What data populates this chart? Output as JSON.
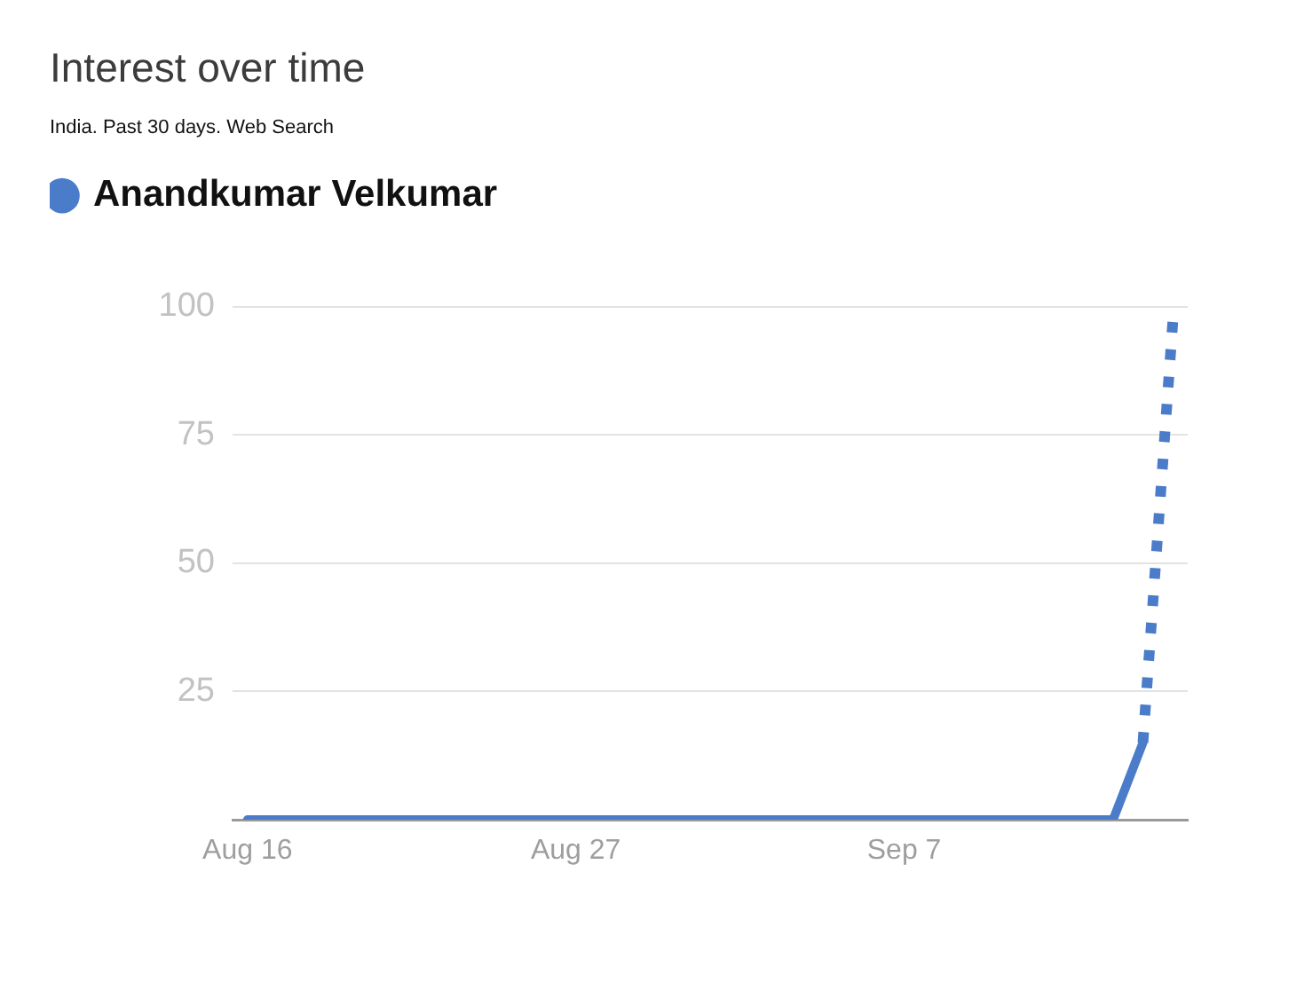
{
  "chart_data": {
    "type": "line",
    "title": "Interest over time",
    "subtitle": "India. Past 30 days. Web Search",
    "series": [
      {
        "name": "Anandkumar Velkumar",
        "color": "#4a7cc9",
        "x": [
          "--08-16",
          "--08-17",
          "--08-18",
          "--08-19",
          "--08-20",
          "--08-21",
          "--08-22",
          "--08-23",
          "--08-24",
          "--08-25",
          "--08-26",
          "--08-27",
          "--08-28",
          "--08-29",
          "--08-30",
          "--08-31",
          "--09-01",
          "--09-02",
          "--09-03",
          "--09-04",
          "--09-05",
          "--09-06",
          "--09-07",
          "--09-08",
          "--09-09",
          "--09-10",
          "--09-11",
          "--09-12",
          "--09-13",
          "--09-14",
          "--09-15"
        ],
        "values": [
          0,
          0,
          0,
          0,
          0,
          0,
          0,
          0,
          0,
          0,
          0,
          0,
          0,
          0,
          0,
          0,
          0,
          0,
          0,
          0,
          0,
          0,
          0,
          0,
          0,
          0,
          0,
          0,
          0,
          0,
          15
        ]
      },
      {
        "color": "#4a7cc9",
        "x": [
          "--09-15",
          "--09-16"
        ],
        "values": [
          15,
          97
        ],
        "line_style": "dotted"
      }
    ],
    "xlim": [
      "--08-15T12:00",
      "--09-16T12:00"
    ],
    "xticks": [
      {
        "value": "--08-16",
        "label": "Aug 16"
      },
      {
        "value": "--08-27",
        "label": "Aug 27"
      },
      {
        "value": "--09-07",
        "label": "Sep 7"
      }
    ],
    "ylim": [
      0,
      100
    ],
    "yticks": [
      25,
      50,
      75,
      100
    ],
    "grid": "y",
    "legend": "top left"
  }
}
